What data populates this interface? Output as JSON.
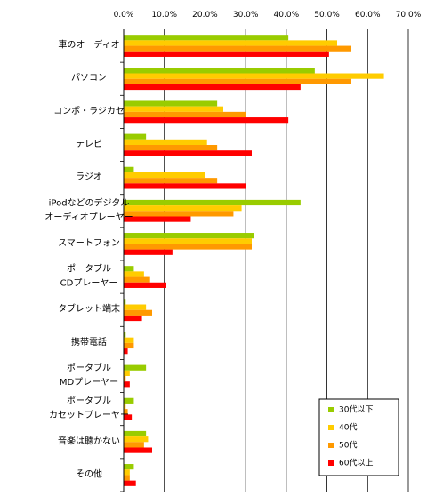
{
  "chart_data": {
    "type": "bar",
    "orientation": "horizontal",
    "xlim": [
      0,
      70
    ],
    "x_ticks": [
      "0.0%",
      "10.0%",
      "20.0%",
      "30.0%",
      "40.0%",
      "50.0%",
      "60.0%",
      "70.0%"
    ],
    "grid": "vertical",
    "legend_position": "bottom-right",
    "categories": [
      [
        "車のオーディオ"
      ],
      [
        "パソコン"
      ],
      [
        "コンポ・ラジカセ"
      ],
      [
        "テレビ"
      ],
      [
        "ラジオ"
      ],
      [
        "iPodなどのデジタル",
        "オーディオプレーヤー"
      ],
      [
        "スマートフォン"
      ],
      [
        "ポータブル",
        "CDプレーヤー"
      ],
      [
        "タブレット端末"
      ],
      [
        "携帯電話"
      ],
      [
        "ポータブル",
        "MDプレーヤー"
      ],
      [
        "ポータブル",
        "カセットプレーヤー"
      ],
      [
        "音楽は聴かない"
      ],
      [
        "その他"
      ]
    ],
    "series": [
      {
        "name": "30代以下",
        "color": "#99cc00",
        "values": [
          40.5,
          47,
          23,
          5.5,
          2.5,
          43.5,
          32,
          2.5,
          0.5,
          0.5,
          5.5,
          2.5,
          5.5,
          2.5
        ]
      },
      {
        "name": "40代",
        "color": "#ffcc00",
        "values": [
          52.5,
          64,
          24.5,
          20.5,
          20,
          29,
          31.5,
          5,
          5.5,
          2.5,
          1.5,
          0.5,
          6,
          1.5
        ]
      },
      {
        "name": "50代",
        "color": "#ff9900",
        "values": [
          56,
          56,
          30,
          23,
          23,
          27,
          31.5,
          6.5,
          7,
          2.5,
          0.5,
          1,
          5,
          1.5
        ]
      },
      {
        "name": "60代以上",
        "color": "#ff0000",
        "values": [
          50.5,
          43.5,
          40.5,
          31.5,
          30,
          16.5,
          12,
          10.5,
          4.5,
          1,
          1.5,
          2,
          7,
          3
        ]
      }
    ]
  }
}
